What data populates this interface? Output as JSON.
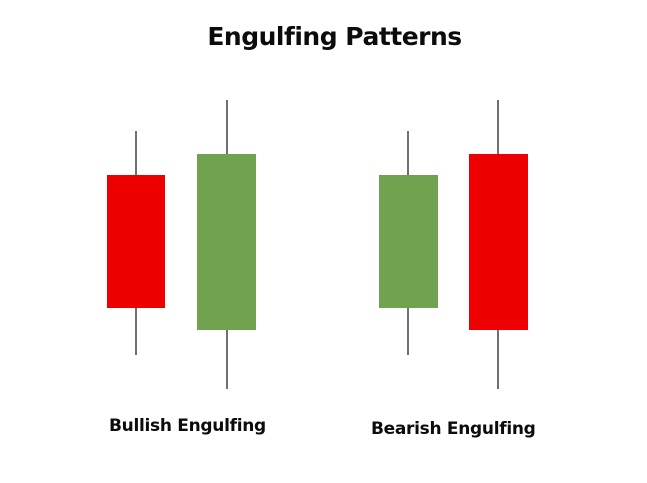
{
  "title": "Engulfing Patterns",
  "colors": {
    "bullish": "#71a24f",
    "bearish": "#ee0000",
    "wick": "#111111",
    "background": "#ffffff"
  },
  "patterns": [
    {
      "label": "Bullish Engulfing",
      "candles": [
        {
          "direction": "bearish"
        },
        {
          "direction": "bullish"
        }
      ]
    },
    {
      "label": "Bearish Engulfing",
      "candles": [
        {
          "direction": "bullish"
        },
        {
          "direction": "bearish"
        }
      ]
    }
  ]
}
